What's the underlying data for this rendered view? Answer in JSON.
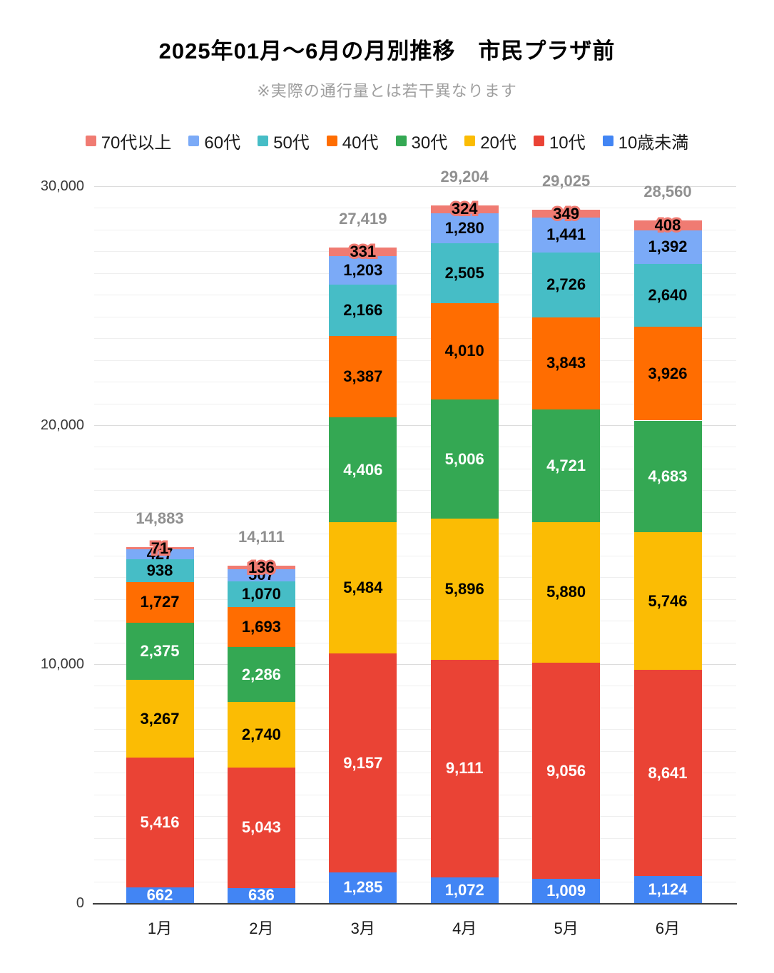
{
  "header": {
    "title": "2025年01月～6月の月別推移　市民プラザ前",
    "subtitle": "※実際の通行量とは若干異なります"
  },
  "chart_data": {
    "type": "bar",
    "stacked": true,
    "title": "2025年01月～6月の月別推移　市民プラザ前",
    "subtitle": "※実際の通行量とは若干異なります",
    "categories": [
      "1月",
      "2月",
      "3月",
      "4月",
      "5月",
      "6月"
    ],
    "series": [
      {
        "name": "10歳未満",
        "color": "#4285F4",
        "label_color": "#ffffff",
        "values": [
          662,
          636,
          1285,
          1072,
          1009,
          1124
        ]
      },
      {
        "name": "10代",
        "color": "#EA4335",
        "label_color": "#ffffff",
        "values": [
          5416,
          5043,
          9157,
          9111,
          9056,
          8641
        ]
      },
      {
        "name": "20代",
        "color": "#FBBC04",
        "label_color": "#000000",
        "values": [
          3267,
          2740,
          5484,
          5896,
          5880,
          5746
        ]
      },
      {
        "name": "30代",
        "color": "#34A853",
        "label_color": "#ffffff",
        "values": [
          2375,
          2286,
          4406,
          5006,
          4721,
          4683
        ]
      },
      {
        "name": "40代",
        "color": "#FF6D01",
        "label_color": "#000000",
        "values": [
          1727,
          1693,
          3387,
          4010,
          3843,
          3926
        ]
      },
      {
        "name": "50代",
        "color": "#46BDC6",
        "label_color": "#000000",
        "values": [
          938,
          1070,
          2166,
          2505,
          2726,
          2640
        ]
      },
      {
        "name": "60代",
        "color": "#7BAAF7",
        "label_color": "#000000",
        "values": [
          427,
          507,
          1203,
          1280,
          1441,
          1392
        ]
      },
      {
        "name": "70代以上",
        "color": "#F07B72",
        "label_color": "#000000",
        "halo": true,
        "values": [
          71,
          136,
          331,
          324,
          349,
          408
        ]
      }
    ],
    "totals": [
      14883,
      14111,
      27419,
      29204,
      29025,
      28560
    ],
    "total_label_color": "#909090",
    "legend_order": [
      "70代以上",
      "60代",
      "50代",
      "40代",
      "30代",
      "20代",
      "10代",
      "10歳未満"
    ],
    "legend_position": "top",
    "grid": true,
    "y_axis": {
      "ticks": [
        0,
        10000,
        20000,
        30000
      ],
      "max": 30000,
      "minor_intervals_per_major": 11
    },
    "x_axis_labels": [
      "1月",
      "2月",
      "3月",
      "4月",
      "5月",
      "6月"
    ]
  }
}
